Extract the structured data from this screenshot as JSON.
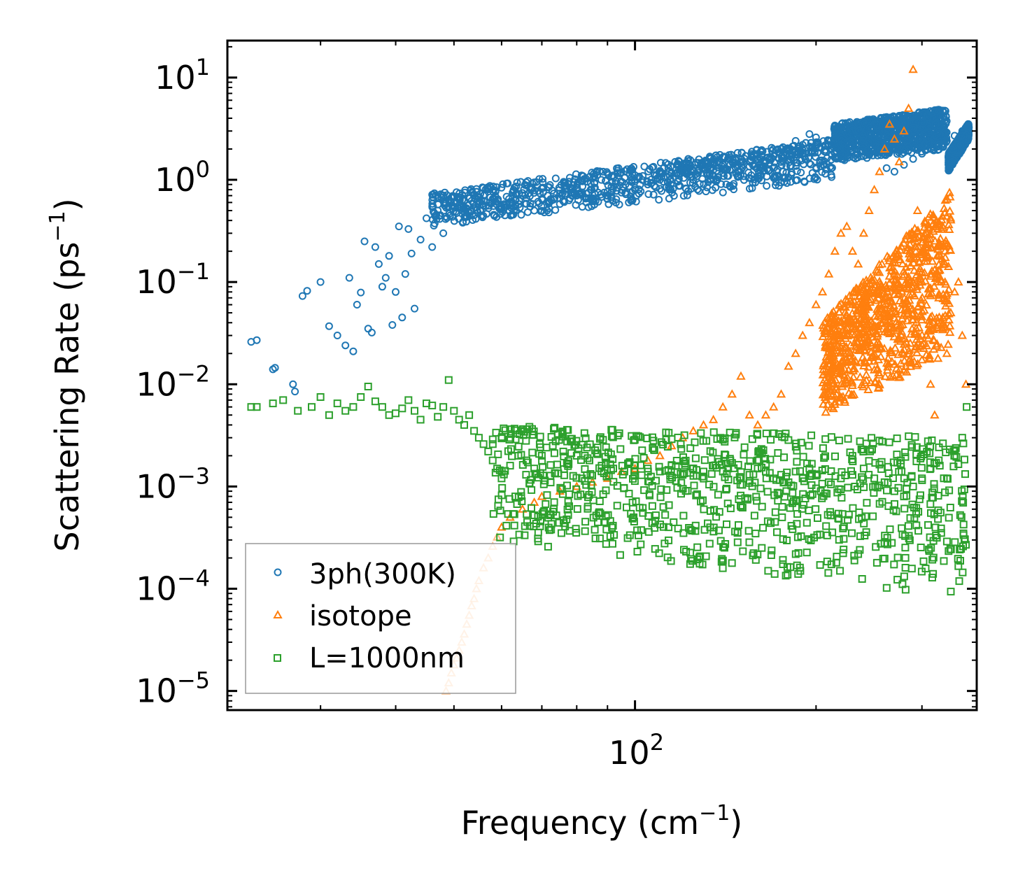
{
  "chart_data": {
    "type": "scatter",
    "title": "",
    "xlabel": "Frequency (cm",
    "xlabel_sup": "−1",
    "xlabel_close": ")",
    "ylabel": "Scattering Rate (ps",
    "ylabel_sup": "−1",
    "ylabel_close": ")",
    "xscale": "log",
    "yscale": "log",
    "xlim": [
      21,
      370
    ],
    "ylim": [
      6.5e-06,
      23
    ],
    "x_ticks": [
      {
        "value": 100,
        "base": "10",
        "exp": "2"
      }
    ],
    "y_ticks": [
      {
        "value": 1e-05,
        "base": "10",
        "exp": "−5"
      },
      {
        "value": 0.0001,
        "base": "10",
        "exp": "−4"
      },
      {
        "value": 0.001,
        "base": "10",
        "exp": "−3"
      },
      {
        "value": 0.01,
        "base": "10",
        "exp": "−2"
      },
      {
        "value": 0.1,
        "base": "10",
        "exp": "−1"
      },
      {
        "value": 1,
        "base": "10",
        "exp": "0"
      },
      {
        "value": 10,
        "base": "10",
        "exp": "1"
      }
    ],
    "legend_position": "bottom-left",
    "grid": false,
    "series": [
      {
        "name": "3ph(300K)",
        "marker": "circle",
        "color": "#1f77b4",
        "x": [
          23,
          23.5,
          25,
          25.2,
          27,
          27.2,
          28,
          28.5,
          30,
          31,
          32,
          33,
          33.5,
          34,
          34.5,
          35,
          35.5,
          36,
          36.5,
          37,
          37.5,
          38,
          38.5,
          39,
          39.5,
          40,
          40.5,
          41,
          41.5,
          42,
          42.5,
          43,
          44,
          45,
          46,
          47,
          48,
          49,
          50,
          52,
          54,
          56,
          58,
          60,
          62,
          65,
          68,
          70,
          72,
          75,
          78,
          80,
          83,
          86,
          90,
          95,
          100,
          105,
          110,
          115,
          120,
          125,
          130,
          135,
          140,
          145,
          150,
          155,
          160,
          165,
          170,
          175,
          180,
          185,
          190,
          195,
          200,
          210,
          220,
          230,
          240,
          250,
          255,
          262,
          270,
          280,
          290,
          300,
          310,
          320,
          330,
          340,
          350,
          357
        ],
        "y": [
          0.026,
          0.027,
          0.014,
          0.0145,
          0.01,
          0.0085,
          0.073,
          0.082,
          0.1,
          0.037,
          0.03,
          0.024,
          0.11,
          0.021,
          0.06,
          0.079,
          0.25,
          0.035,
          0.032,
          0.22,
          0.15,
          0.09,
          0.11,
          0.18,
          0.038,
          0.08,
          0.35,
          0.045,
          0.12,
          0.33,
          0.19,
          0.055,
          0.26,
          0.42,
          0.22,
          0.5,
          0.3,
          0.55,
          0.6,
          0.52,
          0.45,
          0.7,
          0.65,
          0.55,
          0.6,
          0.7,
          0.5,
          0.65,
          0.62,
          0.58,
          0.66,
          0.7,
          0.6,
          0.62,
          0.65,
          0.75,
          0.8,
          0.9,
          1.0,
          1.15,
          1.2,
          1.0,
          1.3,
          1.1,
          1.4,
          1.25,
          1.5,
          1.35,
          1.6,
          1.5,
          1.7,
          2.0,
          1.9,
          2.4,
          2.2,
          2.8,
          2.6,
          2.4,
          2.2,
          3.0,
          2.6,
          3.5,
          3.0,
          1.3,
          1.2,
          1.4,
          1.6,
          1.8,
          2.0,
          2.2,
          2.4,
          2.7,
          3.0,
          3.3
        ]
      },
      {
        "name": "isotope",
        "marker": "triangle",
        "color": "#ff7f0e",
        "x": [
          48.5,
          49,
          49.5,
          50,
          50.5,
          51,
          51.5,
          52,
          52.5,
          53,
          53.5,
          54,
          54.5,
          55,
          56,
          57,
          58,
          59,
          60,
          62,
          65,
          68,
          70,
          75,
          80,
          85,
          90,
          95,
          100,
          105,
          110,
          115,
          120,
          125,
          130,
          135,
          140,
          145,
          150,
          155,
          160,
          165,
          170,
          175,
          180,
          185,
          190,
          195,
          200,
          205,
          210,
          215,
          220,
          225,
          230,
          235,
          240,
          245,
          250,
          255,
          260,
          265,
          270,
          275,
          280,
          285,
          290,
          295,
          300,
          305,
          310,
          315,
          320,
          325,
          330,
          335,
          340,
          345,
          350,
          355
        ],
        "y": [
          1e-05,
          1.2e-05,
          1.5e-05,
          1.8e-05,
          2.1e-05,
          2.5e-05,
          3e-05,
          3.6e-05,
          4.5e-05,
          5.5e-05,
          6.8e-05,
          8e-05,
          0.0001,
          0.00012,
          0.00016,
          0.0002,
          0.00026,
          0.00032,
          0.0004,
          0.0005,
          0.0006,
          0.0007,
          0.0008,
          0.0009,
          0.001,
          0.0011,
          0.0012,
          0.0014,
          0.0015,
          0.0018,
          0.002,
          0.0025,
          0.003,
          0.0035,
          0.004,
          0.0045,
          0.006,
          0.008,
          0.012,
          0.005,
          0.004,
          0.005,
          0.006,
          0.008,
          0.015,
          0.02,
          0.03,
          0.04,
          0.06,
          0.08,
          0.12,
          0.2,
          0.3,
          0.35,
          0.2,
          0.15,
          0.3,
          0.5,
          0.8,
          1.2,
          2.0,
          3.5,
          2.5,
          1.5,
          3.0,
          5.0,
          12.0,
          0.5,
          0.1,
          0.03,
          0.01,
          0.005,
          0.07,
          0.04,
          0.02,
          0.05,
          0.08,
          0.1,
          0.03,
          0.01
        ]
      },
      {
        "name": "L=1000nm",
        "marker": "square",
        "color": "#2ca02c",
        "x": [
          23,
          23.5,
          25,
          26,
          27.5,
          29,
          30,
          31,
          32,
          33,
          34,
          35,
          36,
          37,
          38,
          39,
          40,
          41,
          42,
          43,
          44,
          45,
          46,
          47,
          48,
          49,
          50,
          51,
          52,
          53,
          54,
          55,
          56,
          57,
          58,
          59,
          60,
          62,
          64,
          66,
          68,
          70,
          73,
          76,
          80,
          84,
          88,
          92,
          96,
          100,
          105,
          110,
          115,
          120,
          125,
          130,
          135,
          140,
          145,
          150,
          155,
          160,
          165,
          170,
          175,
          180,
          185,
          190,
          195,
          200,
          210,
          220,
          230,
          240,
          250,
          260,
          270,
          280,
          290,
          300,
          310,
          320,
          330,
          340,
          350,
          356
        ],
        "y": [
          0.006,
          0.006,
          0.0065,
          0.007,
          0.0055,
          0.006,
          0.0075,
          0.005,
          0.0065,
          0.0055,
          0.006,
          0.0075,
          0.0095,
          0.0068,
          0.006,
          0.005,
          0.0052,
          0.0058,
          0.007,
          0.0055,
          0.0045,
          0.0065,
          0.0062,
          0.0048,
          0.006,
          0.011,
          0.0055,
          0.0045,
          0.004,
          0.005,
          0.0035,
          0.003,
          0.0026,
          0.0022,
          0.0018,
          0.0015,
          0.0012,
          0.0016,
          0.002,
          0.0018,
          0.0015,
          0.002,
          0.0025,
          0.0022,
          0.002,
          0.0018,
          0.0016,
          0.0015,
          0.0014,
          0.0016,
          0.0015,
          0.0014,
          0.0016,
          0.0013,
          0.0015,
          0.0014,
          0.0016,
          0.0014,
          0.0017,
          0.0012,
          0.0013,
          0.0015,
          0.0014,
          0.0012,
          0.0013,
          0.0011,
          0.0014,
          0.0012,
          0.0015,
          0.0013,
          0.0011,
          0.0012,
          0.0013,
          0.0015,
          0.0012,
          0.0011,
          0.0009,
          0.0008,
          0.001,
          0.0012,
          0.0015,
          0.0018,
          0.0012,
          0.002,
          0.003,
          0.006
        ]
      }
    ],
    "cloud_bands": [
      {
        "series": 0,
        "x0": 46,
        "x1": 214,
        "ylo0": 0.35,
        "yhi0": 0.75,
        "ylo1": 1.0,
        "yhi1": 2.5
      },
      {
        "series": 0,
        "x0": 214,
        "x1": 330,
        "ylo0": 1.5,
        "yhi0": 3.5,
        "ylo1": 2.0,
        "yhi1": 5.0
      },
      {
        "series": 0,
        "x0": 332,
        "x1": 359,
        "ylo0": 1.2,
        "yhi0": 1.8,
        "ylo1": 2.5,
        "yhi1": 3.6
      },
      {
        "series": 1,
        "x0": 205,
        "x1": 335,
        "ylo0": 0.005,
        "yhi0": 0.04,
        "ylo1": 0.02,
        "yhi1": 0.8
      },
      {
        "series": 2,
        "x0": 58,
        "x1": 356,
        "ylo0": 0.0003,
        "yhi0": 0.004,
        "ylo1": 8e-05,
        "yhi1": 0.003
      }
    ]
  }
}
